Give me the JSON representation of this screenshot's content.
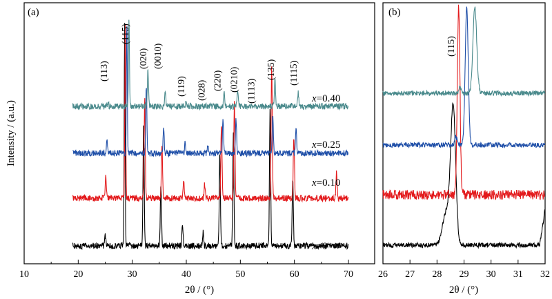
{
  "chart_data": [
    {
      "type": "line",
      "panel_label": "(a)",
      "xlabel": "2θ / (°)",
      "ylabel": "Intensity / (a.u.)",
      "xlim": [
        10,
        70
      ],
      "xticks": [
        "10",
        "20",
        "30",
        "40",
        "50",
        "60",
        "70"
      ],
      "grid": false,
      "series": [
        {
          "name": "x=0",
          "label_var": "x",
          "label_rest": "=0",
          "color": "#000000",
          "x_range": [
            19,
            70
          ],
          "peaks": [
            [
              28.6,
              1.0
            ],
            [
              32.1,
              0.55
            ],
            [
              35.3,
              0.28
            ],
            [
              39.3,
              0.1
            ],
            [
              46.2,
              0.4
            ],
            [
              48.7,
              0.5
            ],
            [
              55.5,
              0.62
            ],
            [
              59.7,
              0.3
            ],
            [
              25.0,
              0.05
            ],
            [
              43.1,
              0.06
            ]
          ]
        },
        {
          "name": "x=0.10",
          "label_var": "x",
          "label_rest": "=0.10",
          "color": "#e31a1c",
          "x_range": [
            19,
            70
          ],
          "peaks": [
            [
              28.7,
              1.0
            ],
            [
              32.3,
              0.57
            ],
            [
              35.5,
              0.3
            ],
            [
              39.5,
              0.11
            ],
            [
              46.5,
              0.43
            ],
            [
              48.9,
              0.55
            ],
            [
              55.8,
              0.75
            ],
            [
              59.9,
              0.35
            ],
            [
              25.1,
              0.12
            ],
            [
              43.4,
              0.08
            ],
            [
              67.8,
              0.15
            ]
          ]
        },
        {
          "name": "x=0.25",
          "label_var": "x",
          "label_rest": "=0.25",
          "color": "#1f4fa8",
          "x_range": [
            19,
            70
          ],
          "peaks": [
            [
              29.0,
              1.0
            ],
            [
              32.6,
              0.5
            ],
            [
              35.8,
              0.2
            ],
            [
              39.8,
              0.08
            ],
            [
              46.8,
              0.25
            ],
            [
              49.2,
              0.25
            ],
            [
              56.0,
              0.3
            ],
            [
              60.3,
              0.18
            ],
            [
              25.3,
              0.1
            ],
            [
              44.0,
              0.05
            ]
          ]
        },
        {
          "name": "x=0.40",
          "label_var": "x",
          "label_rest": "=0.40",
          "color": "#4a8a8c",
          "x_range": [
            19,
            70
          ],
          "peaks": [
            [
              29.4,
              1.0
            ],
            [
              32.9,
              0.4
            ],
            [
              36.1,
              0.15
            ],
            [
              40.0,
              0.06
            ],
            [
              47.0,
              0.15
            ],
            [
              49.5,
              0.18
            ],
            [
              56.4,
              0.3
            ],
            [
              60.7,
              0.15
            ],
            [
              25.5,
              0.05
            ]
          ]
        }
      ],
      "annotations": [
        "(113)",
        "(115)",
        "(020)",
        "(0010)",
        "(119)",
        "(028)",
        "(220)",
        "(0210)",
        "(1113)",
        "(135)",
        "(1115)"
      ]
    },
    {
      "type": "line",
      "panel_label": "(b)",
      "xlabel": "2θ / (°)",
      "xlim": [
        26,
        32
      ],
      "xticks": [
        "26",
        "27",
        "28",
        "29",
        "30",
        "31",
        "32"
      ],
      "grid": false,
      "series": [
        {
          "name": "x=0",
          "color": "#000000",
          "peak": 28.6
        },
        {
          "name": "x=0.10",
          "color": "#e31a1c",
          "peak": 28.8
        },
        {
          "name": "x=0.25",
          "color": "#1f4fa8",
          "peak": 29.1
        },
        {
          "name": "x=0.40",
          "color": "#4a8a8c",
          "peak": 29.4
        }
      ],
      "annotations": [
        "(115)"
      ]
    }
  ]
}
